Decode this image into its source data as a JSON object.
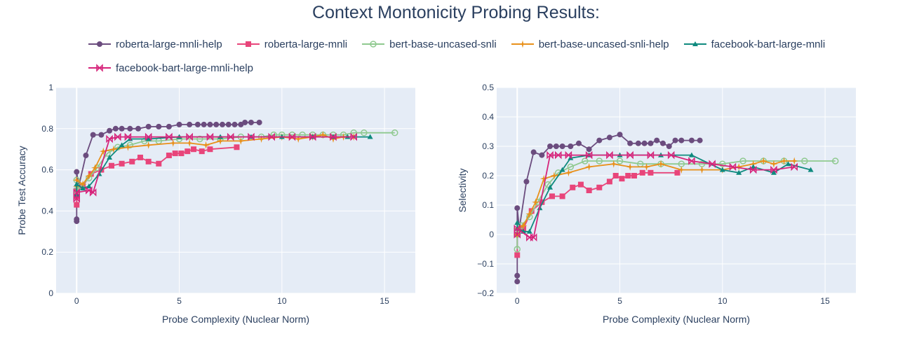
{
  "title": "Context Montonicity Probing Results:",
  "colors": {
    "roberta-large-mnli-help": "#6b4c7e",
    "roberta-large-mnli": "#e8457a",
    "bert-base-uncased-snli": "#8fc98f",
    "bert-base-uncased-snli-help": "#e8901a",
    "facebook-bart-large-mnli": "#0f8a7e",
    "facebook-bart-large-mnli-help": "#d6237a"
  },
  "legend": [
    {
      "name": "roberta-large-mnli-help",
      "marker": "circle"
    },
    {
      "name": "roberta-large-mnli",
      "marker": "square"
    },
    {
      "name": "bert-base-uncased-snli",
      "marker": "circle-open"
    },
    {
      "name": "bert-base-uncased-snli-help",
      "marker": "star"
    },
    {
      "name": "facebook-bart-large-mnli",
      "marker": "triangle"
    },
    {
      "name": "facebook-bart-large-mnli-help",
      "marker": "bowtie"
    }
  ],
  "chart_data": [
    {
      "type": "line",
      "xlabel": "Probe Complexity (Nuclear Norm)",
      "ylabel": "Probe Test Accuracy",
      "xlim": [
        -1,
        16.5
      ],
      "ylim": [
        0,
        1
      ],
      "xticks": [
        0,
        5,
        10,
        15
      ],
      "yticks": [
        0,
        0.2,
        0.4,
        0.6,
        0.8,
        1
      ],
      "ytick_labels": [
        "0",
        "0.2",
        "0.4",
        "0.6",
        "0.8",
        "1"
      ],
      "grid": true,
      "series": [
        {
          "name": "roberta-large-mnli-help",
          "marker": "circle",
          "x": [
            0,
            0,
            0,
            0,
            0.1,
            0.45,
            0.8,
            1.2,
            1.6,
            1.9,
            2.2,
            2.6,
            3,
            3.5,
            4,
            4.5,
            5,
            5.5,
            5.9,
            6.2,
            6.5,
            6.8,
            7.1,
            7.4,
            7.7,
            8.0,
            8.2,
            8.5,
            8.9
          ],
          "y": [
            0.35,
            0.36,
            0.5,
            0.59,
            0.52,
            0.67,
            0.77,
            0.77,
            0.79,
            0.8,
            0.8,
            0.8,
            0.8,
            0.81,
            0.81,
            0.81,
            0.82,
            0.82,
            0.82,
            0.82,
            0.82,
            0.82,
            0.82,
            0.82,
            0.82,
            0.82,
            0.83,
            0.83,
            0.83
          ]
        },
        {
          "name": "roberta-large-mnli",
          "marker": "square",
          "x": [
            0,
            0,
            0,
            0.3,
            0.7,
            1.2,
            1.7,
            2.2,
            2.7,
            3.1,
            3.5,
            4,
            4.5,
            4.8,
            5.1,
            5.4,
            5.7,
            6.1,
            6.5,
            7.8
          ],
          "y": [
            0.43,
            0.47,
            0.5,
            0.52,
            0.58,
            0.6,
            0.62,
            0.63,
            0.64,
            0.66,
            0.64,
            0.63,
            0.67,
            0.68,
            0.68,
            0.69,
            0.7,
            0.69,
            0.7,
            0.71
          ]
        },
        {
          "name": "bert-base-uncased-snli",
          "marker": "circle-open",
          "x": [
            0,
            0,
            0.2,
            0.6,
            1,
            1.5,
            2,
            2.6,
            3.3,
            4,
            5,
            6,
            7,
            8,
            9,
            9.6,
            10,
            10.5,
            11,
            11.5,
            12,
            12.5,
            13,
            13.5,
            14,
            15.5
          ],
          "y": [
            0.55,
            0.5,
            0.52,
            0.56,
            0.61,
            0.68,
            0.71,
            0.72,
            0.74,
            0.74,
            0.75,
            0.75,
            0.75,
            0.76,
            0.76,
            0.77,
            0.77,
            0.77,
            0.77,
            0.77,
            0.77,
            0.77,
            0.77,
            0.78,
            0.78,
            0.78
          ]
        },
        {
          "name": "bert-base-uncased-snli-help",
          "marker": "star",
          "x": [
            0,
            0,
            0.3,
            0.6,
            0.9,
            1.3,
            1.8,
            2.5,
            3.5,
            4.7,
            5.5,
            6.3,
            7,
            8,
            9,
            10,
            10.8,
            11.5,
            12,
            12.5,
            13,
            13.5
          ],
          "y": [
            0.52,
            0.55,
            0.53,
            0.57,
            0.61,
            0.69,
            0.7,
            0.71,
            0.72,
            0.73,
            0.73,
            0.72,
            0.74,
            0.74,
            0.75,
            0.76,
            0.75,
            0.76,
            0.77,
            0.75,
            0.76,
            0.76
          ]
        },
        {
          "name": "facebook-bart-large-mnli",
          "marker": "triangle",
          "x": [
            0,
            0,
            0.3,
            0.6,
            1.1,
            1.6,
            2.2,
            2.6,
            3.5,
            5,
            7,
            8.5,
            10,
            11.5,
            12.5,
            13.2,
            14.3
          ],
          "y": [
            0.48,
            0.53,
            0.51,
            0.52,
            0.58,
            0.66,
            0.72,
            0.75,
            0.75,
            0.76,
            0.76,
            0.76,
            0.76,
            0.76,
            0.76,
            0.76,
            0.76
          ]
        },
        {
          "name": "facebook-bart-large-mnli-help",
          "marker": "bowtie",
          "x": [
            0,
            0,
            0.6,
            0.8,
            1.6,
            2,
            2.5,
            3.5,
            4.5,
            5.5,
            6.5,
            7.5,
            8.5,
            9.5,
            10.5,
            11.5,
            12.5,
            13.5
          ],
          "y": [
            0.46,
            0.49,
            0.5,
            0.49,
            0.75,
            0.76,
            0.76,
            0.76,
            0.76,
            0.76,
            0.76,
            0.76,
            0.76,
            0.76,
            0.76,
            0.76,
            0.76,
            0.76
          ]
        }
      ]
    },
    {
      "type": "line",
      "xlabel": "Probe Complexity (Nuclear Norm)",
      "ylabel": "Selectivity",
      "xlim": [
        -1,
        16.5
      ],
      "ylim": [
        -0.2,
        0.5
      ],
      "xticks": [
        0,
        5,
        10,
        15
      ],
      "yticks": [
        -0.2,
        -0.1,
        0,
        0.1,
        0.2,
        0.3,
        0.4,
        0.5
      ],
      "ytick_labels": [
        "−0.2",
        "−0.1",
        "0",
        "0.1",
        "0.2",
        "0.3",
        "0.4",
        "0.5"
      ],
      "grid": true,
      "series": [
        {
          "name": "roberta-large-mnli-help",
          "marker": "circle",
          "x": [
            0,
            0,
            0,
            0.1,
            0.45,
            0.8,
            1.2,
            1.6,
            1.9,
            2.2,
            2.6,
            3,
            3.5,
            4,
            4.5,
            5,
            5.5,
            5.9,
            6.2,
            6.5,
            6.8,
            7.1,
            7.4,
            7.7,
            8.0,
            8.5,
            8.9
          ],
          "y": [
            -0.16,
            -0.14,
            0.09,
            0.02,
            0.18,
            0.28,
            0.27,
            0.3,
            0.3,
            0.3,
            0.3,
            0.31,
            0.29,
            0.32,
            0.33,
            0.34,
            0.31,
            0.31,
            0.31,
            0.31,
            0.32,
            0.31,
            0.3,
            0.32,
            0.32,
            0.32,
            0.32
          ]
        },
        {
          "name": "roberta-large-mnli",
          "marker": "square",
          "x": [
            0,
            0,
            0.3,
            0.7,
            1.2,
            1.7,
            2.2,
            2.7,
            3.1,
            3.5,
            4,
            4.5,
            4.8,
            5.1,
            5.4,
            5.7,
            6.1,
            6.5,
            7.8
          ],
          "y": [
            -0.07,
            0.0,
            0.02,
            0.08,
            0.11,
            0.13,
            0.13,
            0.16,
            0.17,
            0.15,
            0.16,
            0.18,
            0.2,
            0.19,
            0.2,
            0.2,
            0.21,
            0.21,
            0.21
          ]
        },
        {
          "name": "bert-base-uncased-snli",
          "marker": "circle-open",
          "x": [
            0,
            0,
            0.2,
            0.6,
            1,
            1.5,
            2,
            2.6,
            3.3,
            4,
            5,
            6,
            7,
            8,
            9,
            10,
            11,
            12,
            13,
            14,
            15.5
          ],
          "y": [
            -0.05,
            0.0,
            0.03,
            0.06,
            0.11,
            0.17,
            0.21,
            0.23,
            0.25,
            0.25,
            0.25,
            0.24,
            0.24,
            0.24,
            0.24,
            0.24,
            0.25,
            0.25,
            0.25,
            0.25,
            0.25
          ]
        },
        {
          "name": "bert-base-uncased-snli-help",
          "marker": "star",
          "x": [
            0,
            0,
            0.3,
            0.6,
            0.9,
            1.3,
            1.8,
            2.5,
            3.5,
            4.7,
            5.5,
            6.3,
            7,
            8,
            9,
            10,
            10.8,
            11.5,
            12,
            12.5,
            13,
            13.5
          ],
          "y": [
            0.0,
            0.02,
            0.03,
            0.07,
            0.11,
            0.19,
            0.2,
            0.21,
            0.23,
            0.24,
            0.23,
            0.23,
            0.24,
            0.22,
            0.22,
            0.22,
            0.23,
            0.24,
            0.25,
            0.24,
            0.25,
            0.25
          ]
        },
        {
          "name": "facebook-bart-large-mnli",
          "marker": "triangle",
          "x": [
            0,
            0,
            0.3,
            0.6,
            1.1,
            1.6,
            2.2,
            2.6,
            3.5,
            5,
            7,
            8.5,
            10,
            10.8,
            11.5,
            12.5,
            13.2,
            14.3
          ],
          "y": [
            0.04,
            0.02,
            0.01,
            0.01,
            0.09,
            0.16,
            0.22,
            0.26,
            0.27,
            0.27,
            0.27,
            0.27,
            0.22,
            0.21,
            0.23,
            0.21,
            0.24,
            0.22
          ]
        },
        {
          "name": "facebook-bart-large-mnli-help",
          "marker": "bowtie",
          "x": [
            0,
            0,
            0.6,
            0.8,
            1.6,
            2,
            2.5,
            3.5,
            4.5,
            5.5,
            6.5,
            7.5,
            8.5,
            9.5,
            10.5,
            11.5,
            12.5,
            13.5
          ],
          "y": [
            0.0,
            0.02,
            -0.01,
            -0.01,
            0.27,
            0.27,
            0.27,
            0.27,
            0.27,
            0.27,
            0.27,
            0.27,
            0.25,
            0.24,
            0.23,
            0.22,
            0.22,
            0.23
          ]
        }
      ]
    }
  ]
}
